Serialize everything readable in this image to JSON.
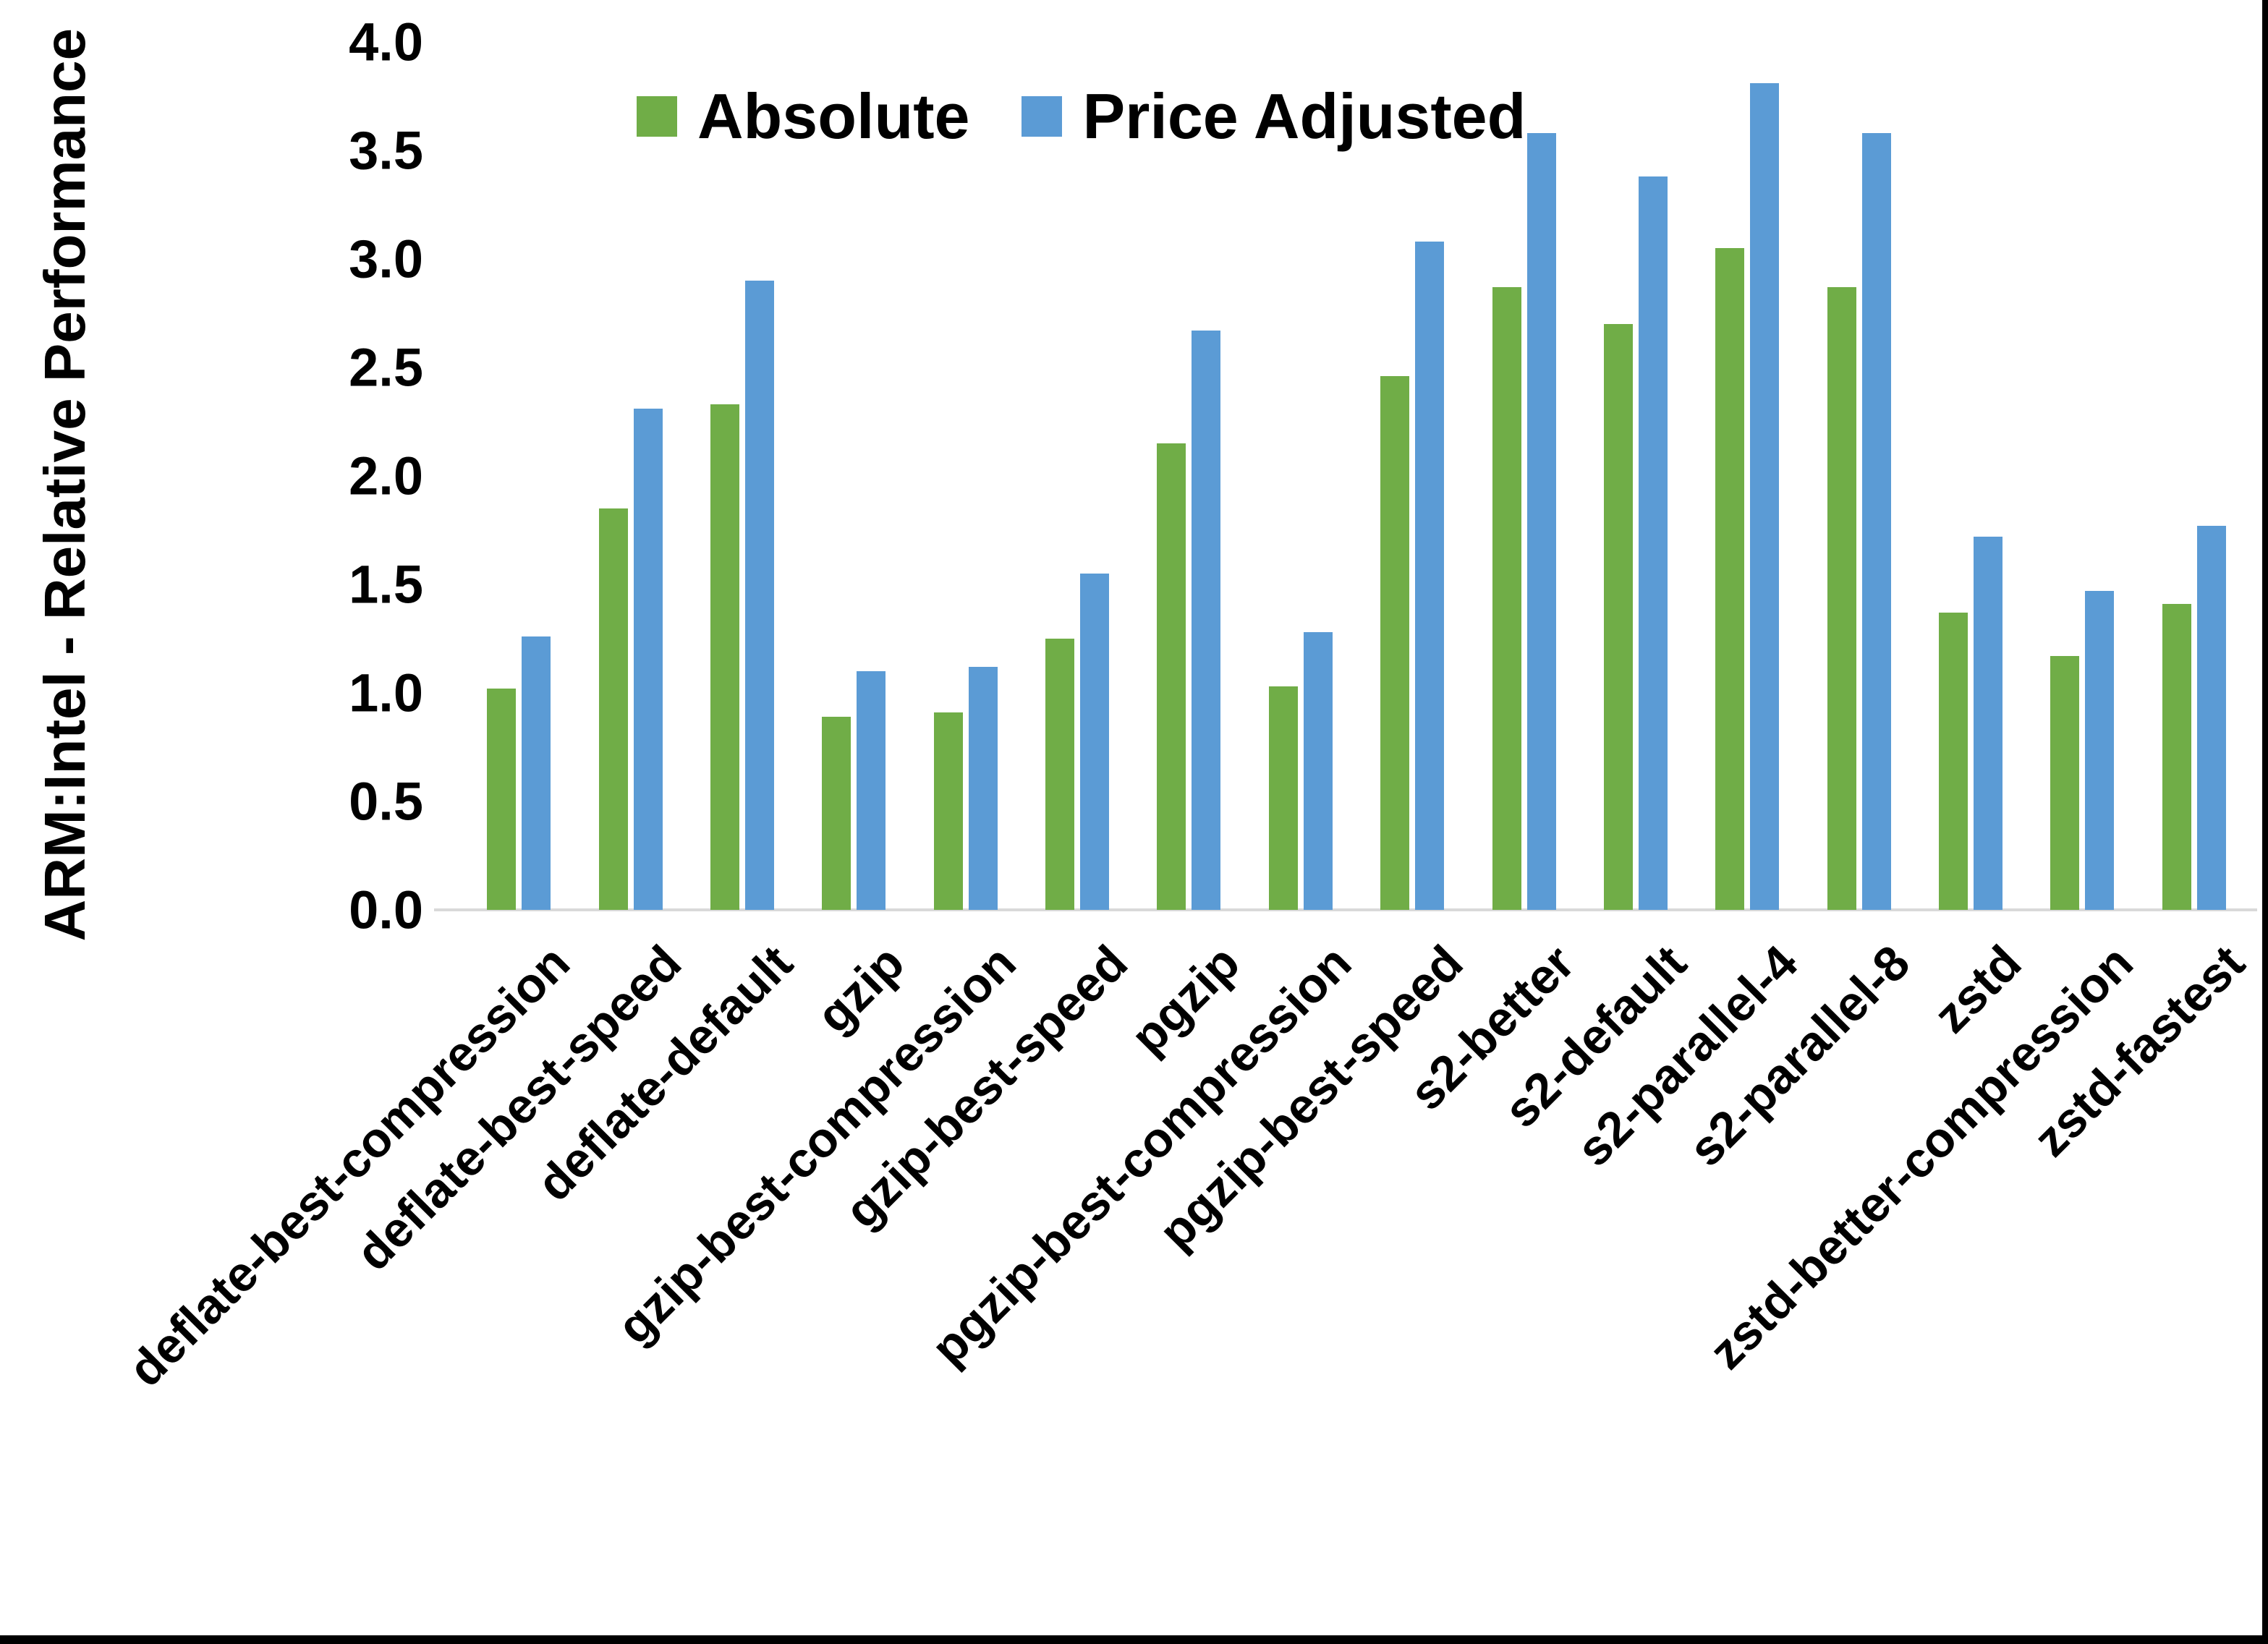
{
  "chart_data": {
    "type": "bar",
    "title": "",
    "ylabel": "ARM:Intel - Relative Performance",
    "xlabel": "",
    "ylim": [
      0.0,
      4.0
    ],
    "ytick_step": 0.5,
    "ytick_labels": [
      "0.0",
      "0.5",
      "1.0",
      "1.5",
      "2.0",
      "2.5",
      "3.0",
      "3.5",
      "4.0"
    ],
    "grid": false,
    "legend_position": "top-center",
    "categories": [
      "deflate-best-compression",
      "deflate-best-speed",
      "deflate-default",
      "gzip",
      "gzip-best-compression",
      "gzip-best-speed",
      "pgzip",
      "pgzip-best-compression",
      "pgzip-best-speed",
      "s2-better",
      "s2-default",
      "s2-parallel-4",
      "s2-parallel-8",
      "zstd",
      "zstd-better-compression",
      "zstd-fastest"
    ],
    "series": [
      {
        "name": "Absolute",
        "color": "#70AD47",
        "values": [
          1.02,
          1.85,
          2.33,
          0.89,
          0.91,
          1.25,
          2.15,
          1.03,
          2.46,
          2.87,
          2.7,
          3.05,
          2.87,
          1.37,
          1.17,
          1.41
        ]
      },
      {
        "name": "Price Adjusted",
        "color": "#5B9BD5",
        "values": [
          1.26,
          2.31,
          2.9,
          1.1,
          1.12,
          1.55,
          2.67,
          1.28,
          3.08,
          3.58,
          3.38,
          3.81,
          3.58,
          1.72,
          1.47,
          1.77
        ]
      }
    ],
    "axis_line_color": "#d9d9d9"
  }
}
